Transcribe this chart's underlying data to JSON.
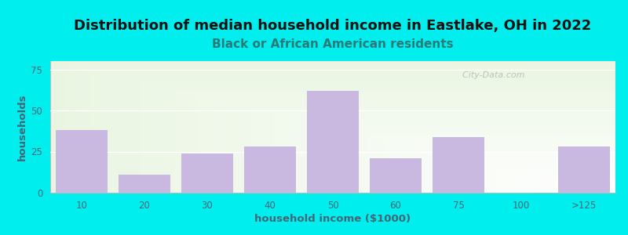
{
  "title": "Distribution of median household income in Eastlake, OH in 2022",
  "subtitle": "Black or African American residents",
  "xlabel": "household income ($1000)",
  "ylabel": "households",
  "categories": [
    "10",
    "20",
    "30",
    "40",
    "50",
    "60",
    "75",
    "100",
    ">125"
  ],
  "values": [
    38,
    11,
    24,
    28,
    62,
    21,
    34,
    0,
    28
  ],
  "bar_color": "#c9b8e0",
  "background_color": "#00EEEE",
  "plot_bg_color_topleft": "#d4ecc4",
  "plot_bg_color_white": "#ffffff",
  "title_fontsize": 13,
  "title_color": "#111111",
  "subtitle_fontsize": 11,
  "subtitle_color": "#2a7a7a",
  "ylabel_color": "#446677",
  "xlabel_color": "#446677",
  "tick_color": "#446677",
  "ylim": [
    0,
    80
  ],
  "yticks": [
    0,
    25,
    50,
    75
  ],
  "watermark": "  City-Data.com"
}
